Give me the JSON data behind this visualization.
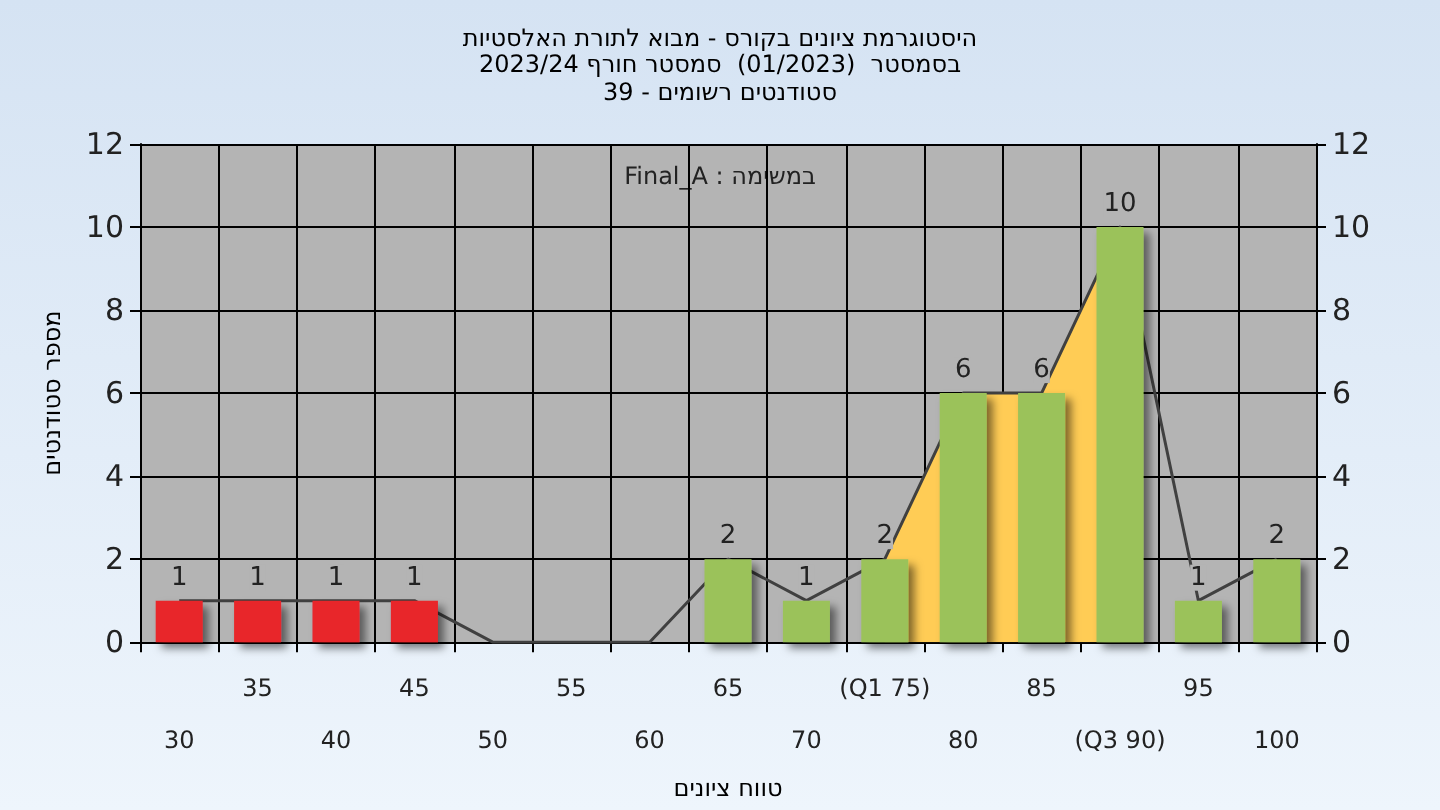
{
  "chart_data": {
    "type": "bar",
    "title": "היסטוגרמת ציונים בקורס - מבוא לתורת האלסטיות",
    "subtitle": "בסמסטר  (01/2023)  סמסטר חורף 2023/24\nסטודנטים רשומים - 39",
    "xlabel": "טווח ציונים",
    "ylabel": "מספר סטודנטים",
    "annotations": [
      "Final_A : במשימה"
    ],
    "categories": [
      "30",
      "35",
      "40",
      "45",
      "50",
      "55",
      "60",
      "65",
      "70",
      "(Q1 75)",
      "80",
      "85",
      "(Q3 90)",
      "95",
      "100"
    ],
    "series": [
      {
        "type": "area",
        "color": "#ffcc55",
        "values": [
          null,
          null,
          null,
          null,
          null,
          null,
          null,
          null,
          null,
          2,
          6,
          6,
          10,
          null,
          null
        ]
      },
      {
        "type": "line",
        "color": "#404040",
        "values": [
          1,
          1,
          1,
          1,
          0,
          0,
          0,
          2,
          1,
          2,
          6,
          6,
          10,
          1,
          2
        ]
      },
      {
        "values": [
          1,
          1,
          1,
          1,
          0,
          0,
          0,
          2,
          1,
          2,
          6,
          6,
          10,
          1,
          2
        ],
        "colors": [
          "#e8262a",
          "#e8262a",
          "#e8262a",
          "#e8262a",
          "#9bc25a",
          "#9bc25a",
          "#9bc25a",
          "#9bc25a",
          "#9bc25a",
          "#9bc25a",
          "#9bc25a",
          "#9bc25a",
          "#9bc25a",
          "#9bc25a",
          "#9bc25a"
        ],
        "value_labels": [
          "1",
          "1",
          "1",
          "1",
          null,
          null,
          null,
          "2",
          "1",
          "2",
          "6",
          "6",
          "10",
          "1",
          "2"
        ]
      }
    ],
    "ylim": [
      0,
      12
    ],
    "yticks": [
      0,
      2,
      4,
      6,
      8,
      10,
      12
    ],
    "y2lim": [
      0,
      12
    ],
    "y2ticks": [
      0,
      2,
      4,
      6,
      8,
      10,
      12
    ],
    "grid": true
  }
}
